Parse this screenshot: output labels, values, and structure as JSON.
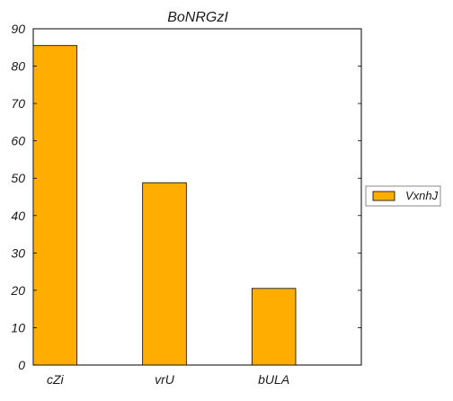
{
  "chart_data": {
    "type": "bar",
    "title": "BoNRGzI",
    "xlabel": "",
    "ylabel": "",
    "categories": [
      "cZi",
      "vrU",
      "bULA"
    ],
    "series": [
      {
        "name": "VxnhJ",
        "values": [
          85.5,
          48.8,
          20.5
        ],
        "color": "#ffae00"
      }
    ],
    "ylim": [
      0,
      90
    ],
    "yticks": [
      0,
      10,
      20,
      30,
      40,
      50,
      60,
      70,
      80,
      90
    ],
    "grid": false,
    "legend_position": "right"
  }
}
